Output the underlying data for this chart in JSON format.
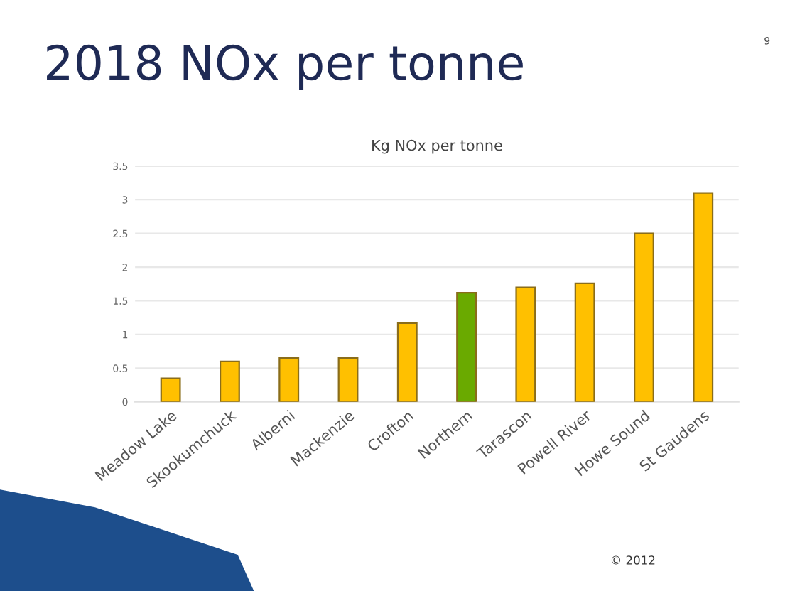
{
  "chart_data": {
    "type": "bar",
    "title": "2018 NOx per tonne",
    "subtitle": "Kg NOx per tonne",
    "categories": [
      "Meadow Lake",
      "Skookumchuck",
      "Alberni",
      "Mackenzie",
      "Crofton",
      "Northern",
      "Tarascon",
      "Powell River",
      "Howe Sound",
      "St Gaudens"
    ],
    "values": [
      0.35,
      0.6,
      0.65,
      0.65,
      1.17,
      1.62,
      1.7,
      1.76,
      2.5,
      3.1
    ],
    "colors": [
      "#ffc000",
      "#ffc000",
      "#ffc000",
      "#ffc000",
      "#ffc000",
      "#6aaa00",
      "#ffc000",
      "#ffc000",
      "#ffc000",
      "#ffc000"
    ],
    "ylim": [
      0,
      3.5
    ],
    "yticks": [
      0,
      0.5,
      1,
      1.5,
      2,
      2.5,
      3,
      3.5
    ],
    "grid": "y",
    "annotations": [
      "9",
      "© 2012"
    ]
  }
}
